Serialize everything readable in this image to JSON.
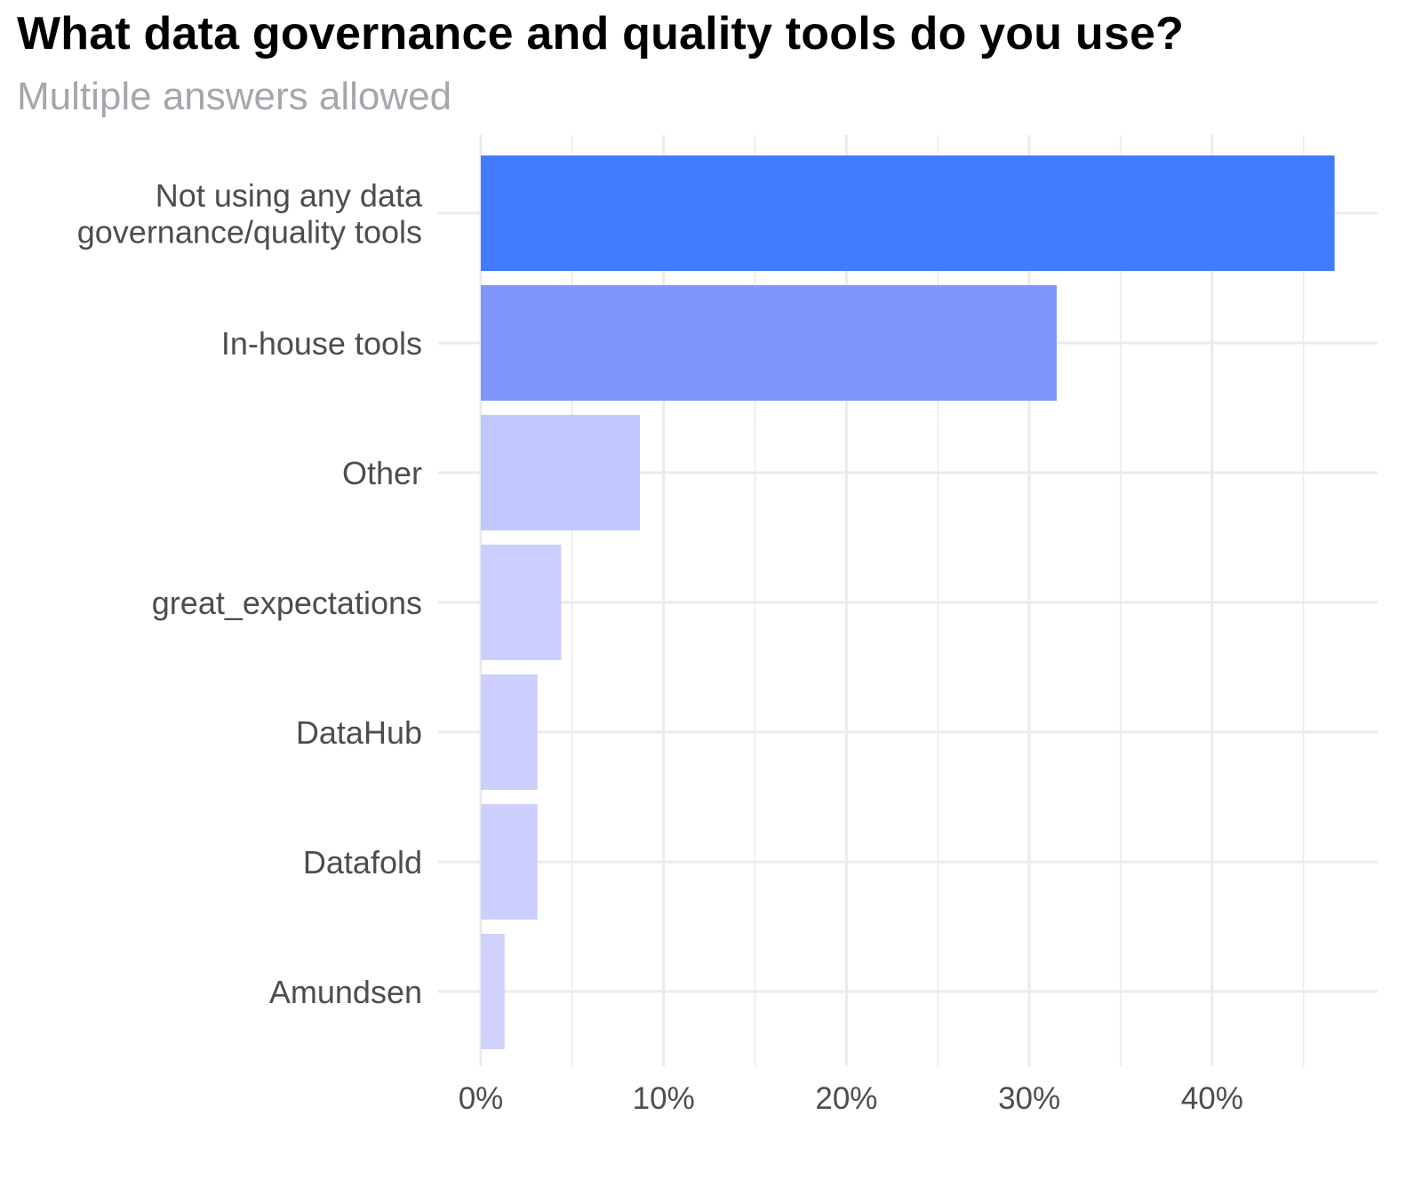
{
  "chart_data": {
    "type": "bar",
    "orientation": "horizontal",
    "title": "What data governance and quality tools do you use?",
    "subtitle": "Multiple answers allowed",
    "categories": [
      "Not using any data governance/quality tools",
      "In-house tools",
      "Other",
      "great_expectations",
      "DataHub",
      "Datafold",
      "Amundsen"
    ],
    "category_lines": [
      [
        "Not using any data",
        "governance/quality tools"
      ],
      [
        "In-house tools"
      ],
      [
        "Other"
      ],
      [
        "great_expectations"
      ],
      [
        "DataHub"
      ],
      [
        "Datafold"
      ],
      [
        "Amundsen"
      ]
    ],
    "values": [
      46.7,
      31.5,
      8.7,
      4.4,
      3.1,
      3.1,
      1.3
    ],
    "colors": [
      "#437bff",
      "#8096ff",
      "#c2c6ff",
      "#ccceff",
      "#cdcfff",
      "#cdcfff",
      "#d0d1ff"
    ],
    "xlim": [
      0,
      49
    ],
    "x_ticks": [
      0,
      10,
      20,
      30,
      40
    ],
    "x_tick_labels": [
      "0%",
      "10%",
      "20%",
      "30%",
      "40%"
    ],
    "xlabel": "",
    "ylabel": "",
    "grid": true,
    "legend": "none"
  }
}
